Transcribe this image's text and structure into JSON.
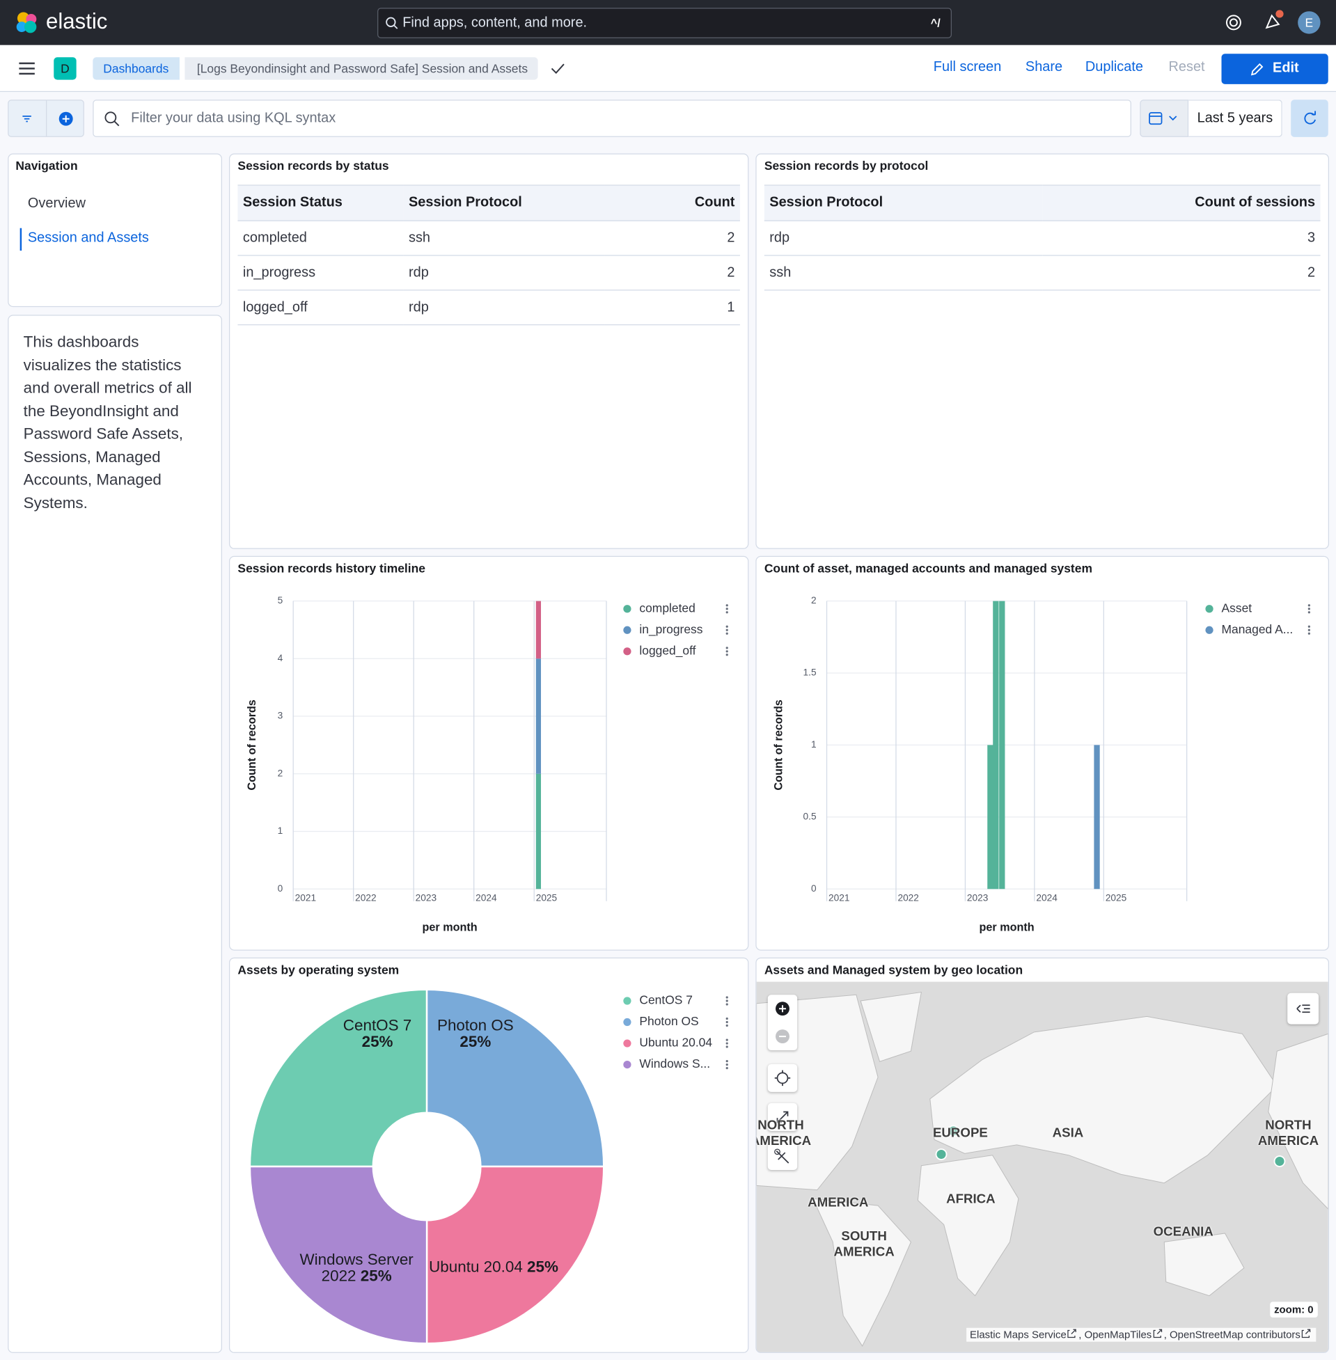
{
  "topbar": {
    "brand": "elastic",
    "search_placeholder": "Find apps, content, and more.",
    "shortcut": "^/",
    "avatar": "E"
  },
  "breadcrumbs": {
    "space": "D",
    "items": [
      "Dashboards",
      "[Logs Beyondinsight and Password Safe] Session and Assets"
    ]
  },
  "actions": [
    "Full screen",
    "Share",
    "Duplicate",
    "Reset",
    "Edit"
  ],
  "query": {
    "placeholder": "Filter your data using KQL syntax",
    "time_range": "Last 5 years"
  },
  "navigation": {
    "title": "Navigation",
    "links": [
      "Overview",
      "Session and Assets"
    ]
  },
  "description": "This dashboards visualizes the statistics and overall metrics of all the BeyondInsight and Password Safe Assets, Sessions, Managed Accounts, Managed Systems.",
  "tables": [
    {
      "title": "Session records by status",
      "columns": [
        "Session Status",
        "Session Protocol",
        "Count"
      ],
      "rows": [
        [
          "completed",
          "ssh",
          2
        ],
        [
          "in_progress",
          "rdp",
          2
        ],
        [
          "logged_off",
          "rdp",
          1
        ]
      ]
    },
    {
      "title": "Session records by protocol",
      "columns": [
        "Session Protocol",
        "Count of sessions"
      ],
      "rows": [
        [
          "rdp",
          3
        ],
        [
          "ssh",
          2
        ]
      ]
    }
  ],
  "chart_data": [
    {
      "type": "bar",
      "stacked": true,
      "title": "Session records history timeline",
      "y_label": "Count of records",
      "x_label": "per month",
      "xlim": [
        2021,
        2026.2
      ],
      "xticks": [
        2021,
        2022,
        2023,
        2024,
        2025
      ],
      "ylim": [
        0,
        5
      ],
      "yticks": [
        0,
        1,
        2,
        3,
        4,
        5
      ],
      "grid": true,
      "legend": "top-right",
      "series": [
        {
          "name": "completed",
          "color": "#54b399",
          "x": [
            2025.03
          ],
          "values": [
            2
          ]
        },
        {
          "name": "in_progress",
          "color": "#6092c0",
          "x": [
            2025.03
          ],
          "values": [
            2
          ]
        },
        {
          "name": "logged_off",
          "color": "#d36086",
          "x": [
            2025.03
          ],
          "values": [
            1
          ]
        }
      ]
    },
    {
      "type": "bar",
      "stacked": true,
      "title": "Count of asset, managed accounts and managed system",
      "y_label": "Count of records",
      "x_label": "per month",
      "xlim": [
        2021,
        2026.2
      ],
      "xticks": [
        2021,
        2022,
        2023,
        2024,
        2025
      ],
      "ylim": [
        0,
        2
      ],
      "yticks": [
        0,
        0.5,
        1,
        1.5,
        2
      ],
      "grid": true,
      "legend": "top-right",
      "series": [
        {
          "name": "Asset",
          "color": "#54b399",
          "x": [
            2023.32,
            2023.4,
            2023.49
          ],
          "values": [
            1,
            2,
            2
          ]
        },
        {
          "name": "Managed A...",
          "color": "#6092c0",
          "x": [
            2024.86
          ],
          "values": [
            1
          ]
        }
      ]
    },
    {
      "type": "pie",
      "donut": true,
      "title": "Assets by operating system",
      "legend": "top-right",
      "categories": [
        "CentOS 7",
        "Photon OS",
        "Ubuntu 20.04",
        "Windows Server 2022"
      ],
      "legend_labels": [
        "CentOS 7",
        "Photon OS",
        "Ubuntu 20.04",
        "Windows S..."
      ],
      "values": [
        25,
        25,
        25,
        25
      ],
      "value_labels": [
        "25%",
        "25%",
        "25%",
        "25%"
      ],
      "colors": [
        "#6dccb1",
        "#79aad9",
        "#ee789d",
        "#a987d1"
      ]
    }
  ],
  "map": {
    "title": "Assets and Managed system by geo location",
    "labels": [
      "NORTH AMERICA",
      "EUROPE",
      "ASIA",
      "NORTH AMERICA",
      "AMERICA",
      "AFRICA",
      "SOUTH AMERICA",
      "OCEANIA"
    ],
    "zoom_label": "zoom:",
    "zoom": 0,
    "attribution": [
      "Elastic Maps Service",
      ", OpenMapTiles",
      ", OpenStreetMap contributors"
    ]
  }
}
